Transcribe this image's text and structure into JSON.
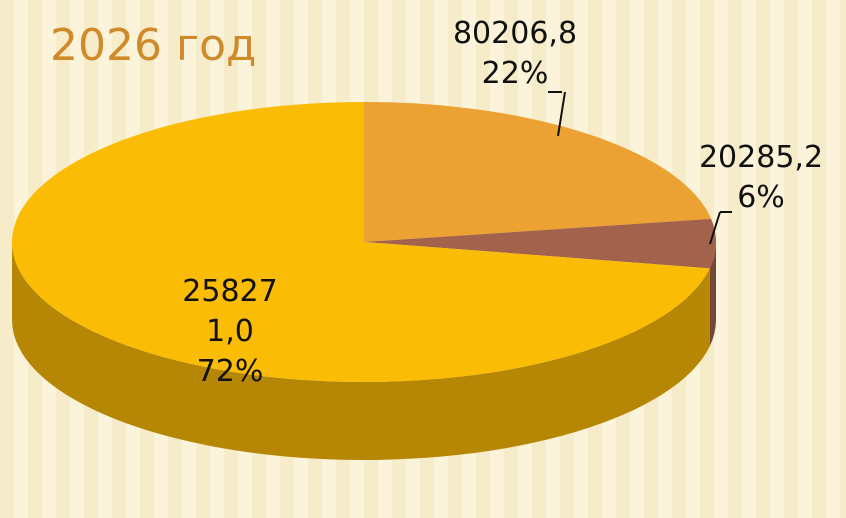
{
  "chart_data": {
    "type": "pie",
    "title": "2026 год",
    "values": [
      80206.8,
      20285.2,
      258271.0
    ],
    "value_labels": [
      "80206,8",
      "20285,2",
      "258271,0"
    ],
    "percents": [
      22,
      6,
      72
    ],
    "percent_labels": [
      "22%",
      "6%",
      "72%"
    ],
    "colors": [
      "#eca232",
      "#a3624b",
      "#fbbc05"
    ]
  }
}
